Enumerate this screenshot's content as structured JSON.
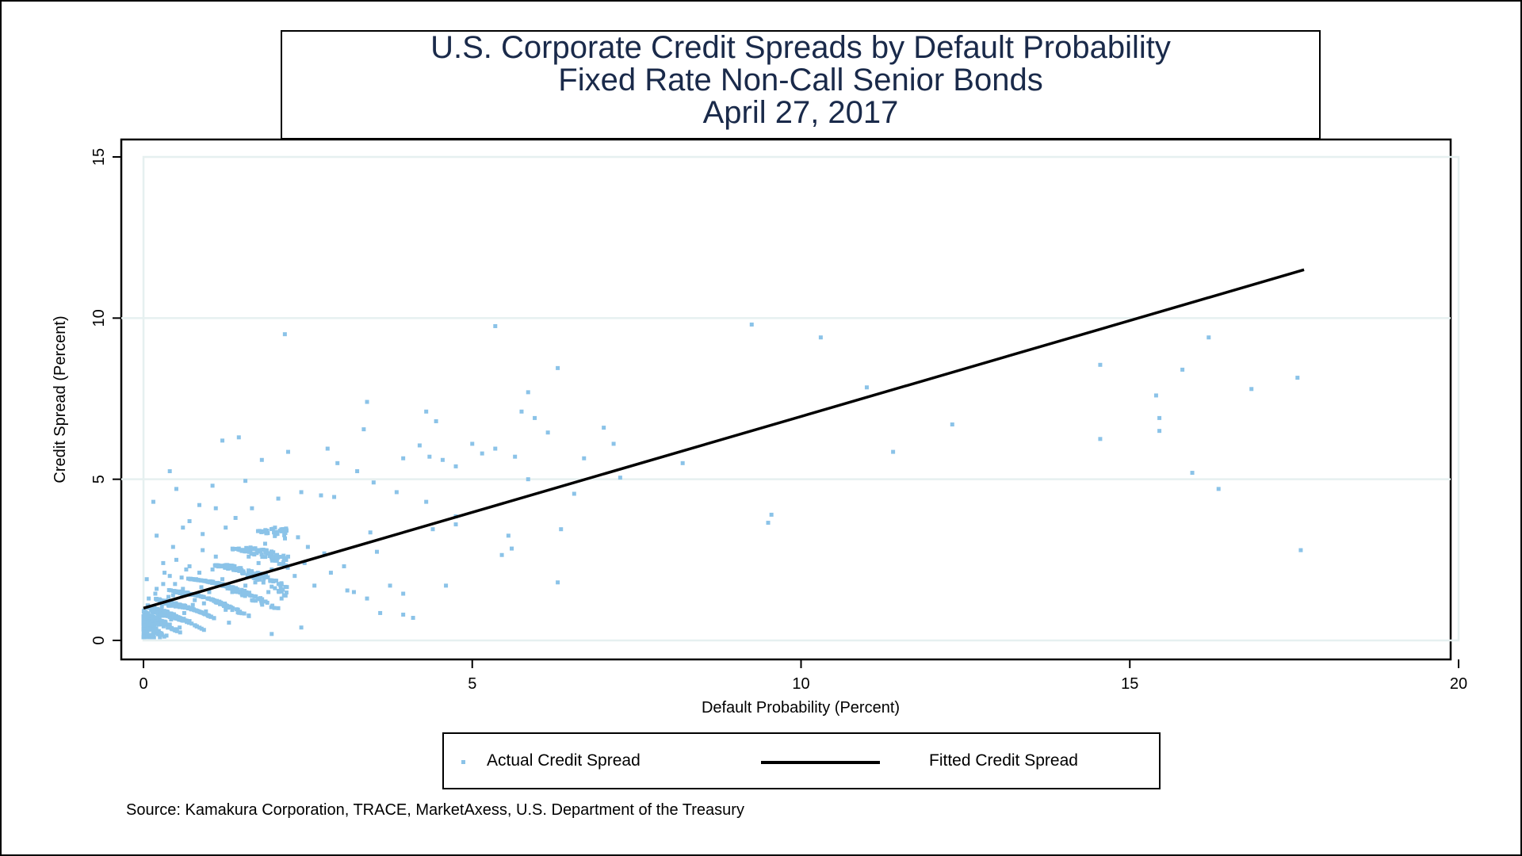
{
  "chart_data": {
    "type": "scatter",
    "title": "U.S. Corporate Credit Spreads by Default Probability",
    "subtitle": "Fixed Rate Non-Call Senior Bonds",
    "date": "April 27, 2017",
    "xlabel": "Default Probability (Percent)",
    "ylabel": "Credit Spread (Percent)",
    "xlim": [
      0,
      20
    ],
    "ylim": [
      0,
      15
    ],
    "x_ticks": [
      "0",
      "5",
      "10",
      "15",
      "20"
    ],
    "y_ticks": [
      "0",
      "5",
      "10",
      "15"
    ],
    "grid": "horizontal",
    "legend_position": "bottom",
    "source": "Source: Kamakura Corporation, TRACE, MarketAxess, U.S. Department of the Treasury",
    "colors": {
      "points": "#8bc3e8",
      "fit": "#000000",
      "grid": "#e6f0f0"
    },
    "series": [
      {
        "name": "Actual Credit Spread",
        "kind": "points",
        "points": [
          [
            2.15,
            9.5
          ],
          [
            5.35,
            9.75
          ],
          [
            9.25,
            9.8
          ],
          [
            10.3,
            9.4
          ],
          [
            6.3,
            8.45
          ],
          [
            14.55,
            8.55
          ],
          [
            15.8,
            8.4
          ],
          [
            16.2,
            9.4
          ],
          [
            17.55,
            8.15
          ],
          [
            16.85,
            7.8
          ],
          [
            15.4,
            7.6
          ],
          [
            15.45,
            6.9
          ],
          [
            15.45,
            6.5
          ],
          [
            14.55,
            6.25
          ],
          [
            15.95,
            5.2
          ],
          [
            16.35,
            4.7
          ],
          [
            17.6,
            2.8
          ],
          [
            11.0,
            7.85
          ],
          [
            12.3,
            6.7
          ],
          [
            11.4,
            5.85
          ],
          [
            9.5,
            3.65
          ],
          [
            9.55,
            3.9
          ],
          [
            8.2,
            5.5
          ],
          [
            7.25,
            5.05
          ],
          [
            7.0,
            6.6
          ],
          [
            7.15,
            6.1
          ],
          [
            6.7,
            5.65
          ],
          [
            6.55,
            4.55
          ],
          [
            6.35,
            3.45
          ],
          [
            6.3,
            1.8
          ],
          [
            5.75,
            7.1
          ],
          [
            5.85,
            7.7
          ],
          [
            5.95,
            6.9
          ],
          [
            6.15,
            6.45
          ],
          [
            5.85,
            5.0
          ],
          [
            5.65,
            5.7
          ],
          [
            5.35,
            5.95
          ],
          [
            5.15,
            5.8
          ],
          [
            5.0,
            6.1
          ],
          [
            5.55,
            3.25
          ],
          [
            5.6,
            2.85
          ],
          [
            5.45,
            2.65
          ],
          [
            4.75,
            3.85
          ],
          [
            4.75,
            3.6
          ],
          [
            4.4,
            3.45
          ],
          [
            4.6,
            1.7
          ],
          [
            4.3,
            7.1
          ],
          [
            4.45,
            6.8
          ],
          [
            4.2,
            6.05
          ],
          [
            4.35,
            5.7
          ],
          [
            4.55,
            5.6
          ],
          [
            4.75,
            5.4
          ],
          [
            4.3,
            4.3
          ],
          [
            3.4,
            7.4
          ],
          [
            3.35,
            6.55
          ],
          [
            3.25,
            5.25
          ],
          [
            3.5,
            4.9
          ],
          [
            3.95,
            5.65
          ],
          [
            3.85,
            4.6
          ],
          [
            3.45,
            3.35
          ],
          [
            3.55,
            2.75
          ],
          [
            3.75,
            1.7
          ],
          [
            3.95,
            1.45
          ],
          [
            4.1,
            0.7
          ],
          [
            3.95,
            0.8
          ],
          [
            3.4,
            1.3
          ],
          [
            3.2,
            1.5
          ],
          [
            3.6,
            0.85
          ],
          [
            2.8,
            5.95
          ],
          [
            2.95,
            5.5
          ],
          [
            2.9,
            4.45
          ],
          [
            2.7,
            4.5
          ],
          [
            2.2,
            5.85
          ],
          [
            1.8,
            5.6
          ],
          [
            1.45,
            6.3
          ],
          [
            1.2,
            6.2
          ],
          [
            1.55,
            4.95
          ],
          [
            1.05,
            4.8
          ],
          [
            0.4,
            5.25
          ],
          [
            0.15,
            4.3
          ],
          [
            1.95,
            0.2
          ],
          [
            2.4,
            0.4
          ],
          [
            2.05,
            1.0
          ],
          [
            1.3,
            0.55
          ],
          [
            3.1,
            1.55
          ],
          [
            2.0,
            3.5
          ],
          [
            2.5,
            2.9
          ],
          [
            1.4,
            3.8
          ],
          [
            0.85,
            4.2
          ],
          [
            0.6,
            3.5
          ],
          [
            0.2,
            3.25
          ],
          [
            0.05,
            1.9
          ],
          [
            0.08,
            1.3
          ],
          [
            0.05,
            0.85
          ],
          [
            0.1,
            0.4
          ],
          [
            0.15,
            0.2
          ],
          [
            0.25,
            0.1
          ],
          [
            0.35,
            0.15
          ],
          [
            0.55,
            0.4
          ],
          [
            0.7,
            0.6
          ],
          [
            0.75,
            1.1
          ],
          [
            0.6,
            1.6
          ],
          [
            0.4,
            2.0
          ],
          [
            0.3,
            1.75
          ],
          [
            0.5,
            2.5
          ],
          [
            0.7,
            2.3
          ],
          [
            0.9,
            2.8
          ],
          [
            1.1,
            2.6
          ],
          [
            1.3,
            2.3
          ],
          [
            1.5,
            2.1
          ],
          [
            1.7,
            1.8
          ],
          [
            1.9,
            1.5
          ],
          [
            2.1,
            1.3
          ],
          [
            2.3,
            2.0
          ],
          [
            2.6,
            1.7
          ],
          [
            2.85,
            2.1
          ],
          [
            3.05,
            2.3
          ],
          [
            2.75,
            2.7
          ],
          [
            2.35,
            3.2
          ],
          [
            1.85,
            3.0
          ],
          [
            1.6,
            2.6
          ],
          [
            1.2,
            1.9
          ],
          [
            1.0,
            1.5
          ],
          [
            0.8,
            1.9
          ],
          [
            0.65,
            2.2
          ],
          [
            0.45,
            1.4
          ],
          [
            0.35,
            0.9
          ],
          [
            0.25,
            1.2
          ],
          [
            0.15,
            0.6
          ],
          [
            0.2,
            1.6
          ],
          [
            0.3,
            2.4
          ],
          [
            0.45,
            2.9
          ],
          [
            0.55,
            1.1
          ],
          [
            0.95,
            0.9
          ],
          [
            1.15,
            1.2
          ],
          [
            1.35,
            1.5
          ],
          [
            1.55,
            1.7
          ],
          [
            1.75,
            2.4
          ],
          [
            1.95,
            2.2
          ],
          [
            2.2,
            2.6
          ],
          [
            2.45,
            2.4
          ],
          [
            0.9,
            3.3
          ],
          [
            1.25,
            3.5
          ],
          [
            1.65,
            4.1
          ],
          [
            2.05,
            4.4
          ],
          [
            2.4,
            4.6
          ],
          [
            0.7,
            3.7
          ],
          [
            1.1,
            4.1
          ],
          [
            0.5,
            4.7
          ],
          [
            0.85,
            2.1
          ],
          [
            0.12,
            0.95
          ],
          [
            0.18,
            1.45
          ],
          [
            0.28,
            1.05
          ],
          [
            0.38,
            1.35
          ],
          [
            0.48,
            1.75
          ],
          [
            0.58,
            1.95
          ],
          [
            0.68,
            1.45
          ],
          [
            0.78,
            1.25
          ],
          [
            0.88,
            1.65
          ],
          [
            1.05,
            2.2
          ],
          [
            1.45,
            2.85
          ],
          [
            1.95,
            2.7
          ],
          [
            0.32,
            2.1
          ],
          [
            0.42,
            0.65
          ],
          [
            0.22,
            0.75
          ],
          [
            0.08,
            0.55
          ],
          [
            0.62,
            0.85
          ],
          [
            0.92,
            1.15
          ],
          [
            1.25,
            0.95
          ],
          [
            1.65,
            1.25
          ]
        ]
      },
      {
        "name": "Fitted Credit Spread",
        "kind": "line",
        "points": [
          [
            0.0,
            1.0
          ],
          [
            17.65,
            11.5
          ]
        ]
      }
    ]
  }
}
